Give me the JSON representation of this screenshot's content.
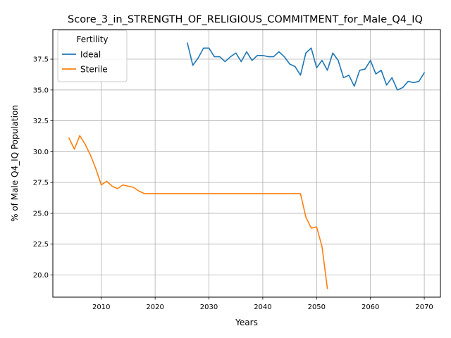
{
  "chart_data": {
    "type": "line",
    "title": "Score_3_in_STRENGTH_OF_RELIGIOUS_COMMITMENT_for_Male_Q4_IQ",
    "xlabel": "Years",
    "ylabel": "% of Male Q4_IQ Population",
    "xlim": [
      2001,
      2073
    ],
    "ylim": [
      18.2,
      39.9
    ],
    "xticks": [
      2010,
      2020,
      2030,
      2040,
      2050,
      2060,
      2070
    ],
    "yticks": [
      20.0,
      22.5,
      25.0,
      27.5,
      30.0,
      32.5,
      35.0,
      37.5
    ],
    "xtick_labels": [
      "2010",
      "2020",
      "2030",
      "2040",
      "2050",
      "2060",
      "2070"
    ],
    "ytick_labels": [
      "20.0",
      "22.5",
      "25.0",
      "27.5",
      "30.0",
      "32.5",
      "35.0",
      "37.5"
    ],
    "grid": true,
    "legend": {
      "title": "Fertility",
      "placement": "top-left"
    },
    "series": [
      {
        "name": "Ideal",
        "color": "#1f77b4",
        "x": [
          2026,
          2027,
          2028,
          2029,
          2030,
          2031,
          2032,
          2033,
          2034,
          2035,
          2036,
          2037,
          2038,
          2039,
          2040,
          2041,
          2042,
          2043,
          2044,
          2045,
          2046,
          2047,
          2048,
          2049,
          2050,
          2051,
          2052,
          2053,
          2054,
          2055,
          2056,
          2057,
          2058,
          2059,
          2060,
          2061,
          2062,
          2063,
          2064,
          2065,
          2066,
          2067,
          2068,
          2069,
          2070
        ],
        "values": [
          38.8,
          37.0,
          37.6,
          38.4,
          38.4,
          37.7,
          37.7,
          37.3,
          37.7,
          38.0,
          37.3,
          38.1,
          37.4,
          37.8,
          37.8,
          37.7,
          37.7,
          38.1,
          37.7,
          37.1,
          36.9,
          36.2,
          38.0,
          38.4,
          36.8,
          37.4,
          36.6,
          38.0,
          37.4,
          36.0,
          36.2,
          35.3,
          36.6,
          36.7,
          37.4,
          36.3,
          36.6,
          35.4,
          36.0,
          35.0,
          35.2,
          35.7,
          35.6,
          35.7,
          36.4
        ]
      },
      {
        "name": "Sterile",
        "color": "#ff7f0e",
        "x": [
          2004,
          2005,
          2006,
          2007,
          2008,
          2009,
          2010,
          2011,
          2012,
          2013,
          2014,
          2015,
          2016,
          2017,
          2018,
          2019,
          2020,
          2025,
          2030,
          2035,
          2040,
          2045,
          2047,
          2048,
          2049,
          2050,
          2051,
          2052
        ],
        "values": [
          31.1,
          30.2,
          31.3,
          30.6,
          29.7,
          28.6,
          27.3,
          27.6,
          27.2,
          27.0,
          27.3,
          27.2,
          27.1,
          26.8,
          26.6,
          26.6,
          26.6,
          26.6,
          26.6,
          26.6,
          26.6,
          26.6,
          26.6,
          24.7,
          23.8,
          23.9,
          22.3,
          18.9
        ]
      }
    ]
  }
}
